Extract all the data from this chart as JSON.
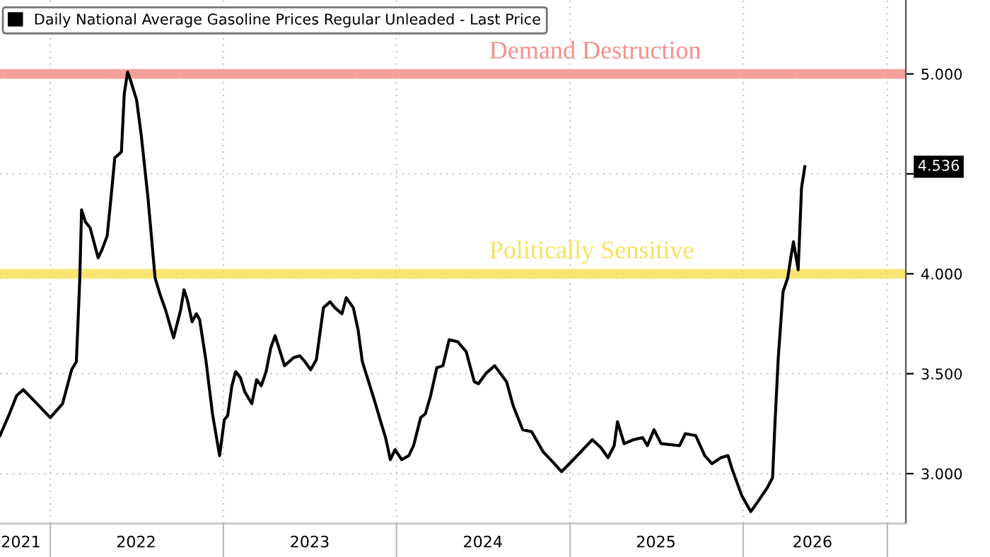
{
  "chart_data": {
    "type": "line",
    "legend": "top left",
    "grid": true,
    "line_style": "solid",
    "marker": "none",
    "series": [
      {
        "name": "Daily National Average Gasoline Prices Regular Unleaded - Last Price",
        "color": "#000000",
        "x": [
          "2021-09-17",
          "2021-10-07",
          "2021-10-22",
          "2021-11-05",
          "2021-12-04",
          "2022-01-01",
          "2022-01-27",
          "2022-02-15",
          "2022-02-25",
          "2022-03-04",
          "2022-03-08",
          "2022-03-16",
          "2022-03-26",
          "2022-04-12",
          "2022-04-20",
          "2022-05-01",
          "2022-05-09",
          "2022-05-17",
          "2022-05-31",
          "2022-06-06",
          "2022-06-13",
          "2022-06-19",
          "2022-07-02",
          "2022-07-12",
          "2022-07-26",
          "2022-08-10",
          "2022-08-20",
          "2022-09-01",
          "2022-09-18",
          "2022-10-03",
          "2022-10-10",
          "2022-10-17",
          "2022-10-27",
          "2022-11-05",
          "2022-11-12",
          "2022-11-25",
          "2022-12-09",
          "2022-12-24",
          "2023-01-03",
          "2023-01-10",
          "2023-01-19",
          "2023-01-27",
          "2023-02-06",
          "2023-02-15",
          "2023-03-02",
          "2023-03-12",
          "2023-03-22",
          "2023-04-01",
          "2023-04-11",
          "2023-04-20",
          "2023-04-28",
          "2023-05-10",
          "2023-05-29",
          "2023-06-11",
          "2023-06-22",
          "2023-07-04",
          "2023-07-16",
          "2023-07-31",
          "2023-08-14",
          "2023-08-24",
          "2023-09-08",
          "2023-09-17",
          "2023-10-02",
          "2023-10-12",
          "2023-10-21",
          "2023-11-15",
          "2023-11-30",
          "2023-12-09",
          "2023-12-19",
          "2023-12-29",
          "2024-01-12",
          "2024-01-27",
          "2024-02-06",
          "2024-02-21",
          "2024-03-02",
          "2024-03-13",
          "2024-03-26",
          "2024-04-08",
          "2024-04-21",
          "2024-05-09",
          "2024-05-27",
          "2024-06-13",
          "2024-06-22",
          "2024-07-07",
          "2024-07-26",
          "2024-08-20",
          "2024-09-03",
          "2024-09-23",
          "2024-10-12",
          "2024-11-05",
          "2024-11-25",
          "2024-12-14",
          "2025-01-08",
          "2025-02-01",
          "2025-02-17",
          "2025-03-07",
          "2025-03-22",
          "2025-04-04",
          "2025-04-11",
          "2025-04-25",
          "2025-05-15",
          "2025-06-03",
          "2025-06-13",
          "2025-06-27",
          "2025-07-12",
          "2025-08-20",
          "2025-09-01",
          "2025-09-23",
          "2025-10-12",
          "2025-10-27",
          "2025-11-15",
          "2025-11-30",
          "2025-12-09",
          "2025-12-29",
          "2026-01-17",
          "2026-02-01",
          "2026-02-21",
          "2026-03-04",
          "2026-03-09",
          "2026-03-16",
          "2026-03-26",
          "2026-04-05",
          "2026-04-12",
          "2026-04-17",
          "2026-04-27",
          "2026-05-04",
          "2026-05-11"
        ],
        "values": [
          3.19,
          3.3,
          3.39,
          3.42,
          3.35,
          3.28,
          3.35,
          3.52,
          3.56,
          3.96,
          4.32,
          4.26,
          4.23,
          4.08,
          4.12,
          4.19,
          4.38,
          4.58,
          4.61,
          4.9,
          5.01,
          4.97,
          4.87,
          4.69,
          4.38,
          3.98,
          3.9,
          3.82,
          3.68,
          3.82,
          3.92,
          3.87,
          3.76,
          3.8,
          3.77,
          3.57,
          3.3,
          3.09,
          3.27,
          3.29,
          3.44,
          3.51,
          3.48,
          3.41,
          3.35,
          3.47,
          3.44,
          3.51,
          3.63,
          3.69,
          3.63,
          3.54,
          3.58,
          3.59,
          3.56,
          3.52,
          3.57,
          3.83,
          3.86,
          3.83,
          3.8,
          3.88,
          3.83,
          3.72,
          3.56,
          3.37,
          3.25,
          3.18,
          3.07,
          3.12,
          3.07,
          3.09,
          3.14,
          3.28,
          3.3,
          3.39,
          3.53,
          3.54,
          3.67,
          3.66,
          3.61,
          3.46,
          3.45,
          3.5,
          3.54,
          3.46,
          3.34,
          3.22,
          3.21,
          3.11,
          3.06,
          3.01,
          3.07,
          3.13,
          3.17,
          3.13,
          3.08,
          3.14,
          3.26,
          3.15,
          3.17,
          3.18,
          3.14,
          3.22,
          3.15,
          3.14,
          3.2,
          3.19,
          3.09,
          3.05,
          3.08,
          3.09,
          3.02,
          2.89,
          2.81,
          2.86,
          2.93,
          2.98,
          3.25,
          3.58,
          3.91,
          3.98,
          4.09,
          4.16,
          4.02,
          4.43,
          4.536
        ]
      }
    ],
    "xlim": [
      "2021-09-17",
      "2026-12-10"
    ],
    "xticks": [
      {
        "value": "2021-10-31",
        "label": "2021"
      },
      {
        "value": "2022-01-01",
        "label": null
      },
      {
        "value": "2022-07-01",
        "label": "2022"
      },
      {
        "value": "2023-01-01",
        "label": null
      },
      {
        "value": "2023-07-02",
        "label": "2023"
      },
      {
        "value": "2024-01-01",
        "label": null
      },
      {
        "value": "2024-07-01",
        "label": "2024"
      },
      {
        "value": "2025-01-01",
        "label": null
      },
      {
        "value": "2025-07-01",
        "label": "2025"
      },
      {
        "value": "2026-01-01",
        "label": null
      },
      {
        "value": "2026-05-27",
        "label": "2026"
      },
      {
        "value": "2026-11-01",
        "label": null
      }
    ],
    "ylim": [
      2.75,
      5.37
    ],
    "yticks": [
      {
        "value": 3,
        "label": "3.000"
      },
      {
        "value": 3.5,
        "label": "3.500"
      },
      {
        "value": 4,
        "label": "4.000"
      },
      {
        "value": 4.5,
        "label": null
      },
      {
        "value": 5,
        "label": "5.000"
      }
    ],
    "ref_lines": [
      {
        "axis": "y",
        "value": 5,
        "label": "Demand Destruction",
        "color": "#f4908a"
      },
      {
        "axis": "y",
        "value": 4,
        "label": "Politically Sensitive",
        "color": "#f7e15a"
      }
    ],
    "annotations": [
      "4.536"
    ]
  }
}
